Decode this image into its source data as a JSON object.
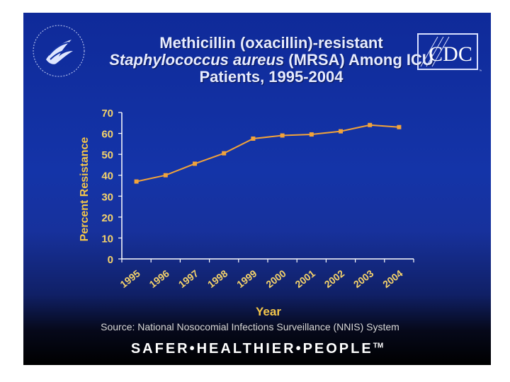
{
  "title": {
    "line1": "Methicillin (oxacillin)-resistant",
    "line2_italic": "Staphylococcus aureus",
    "line2_rest": " (MRSA) Among ICU",
    "line3": "Patients, 1995-2004"
  },
  "logos": {
    "cdc_text": "CDC",
    "seal_name": "hhs-seal-icon",
    "cdc_name": "cdc-logo-icon"
  },
  "source": "Source: National Nosocomial Infections Surveillance (NNIS) System",
  "tagline": {
    "text": "SAFER•HEALTHIER•PEOPLE",
    "mark": "TM"
  },
  "colors": {
    "background": "#1434a8",
    "line": "#f2a33a",
    "axis_text": "#f4d26b"
  },
  "chart_data": {
    "type": "line",
    "title": "",
    "xlabel": "Year",
    "ylabel": "Percent Resistance",
    "x": [
      "1995",
      "1996",
      "1997",
      "1998",
      "1999",
      "2000",
      "2001",
      "2002",
      "2003",
      "2004"
    ],
    "series": [
      {
        "values": [
          37,
          40,
          45.5,
          50.5,
          57.5,
          59,
          59.5,
          61,
          64,
          63
        ]
      }
    ],
    "ylim": [
      0,
      70
    ],
    "yticks": [
      0,
      10,
      20,
      30,
      40,
      50,
      60,
      70
    ],
    "grid": false,
    "legend": "none"
  }
}
